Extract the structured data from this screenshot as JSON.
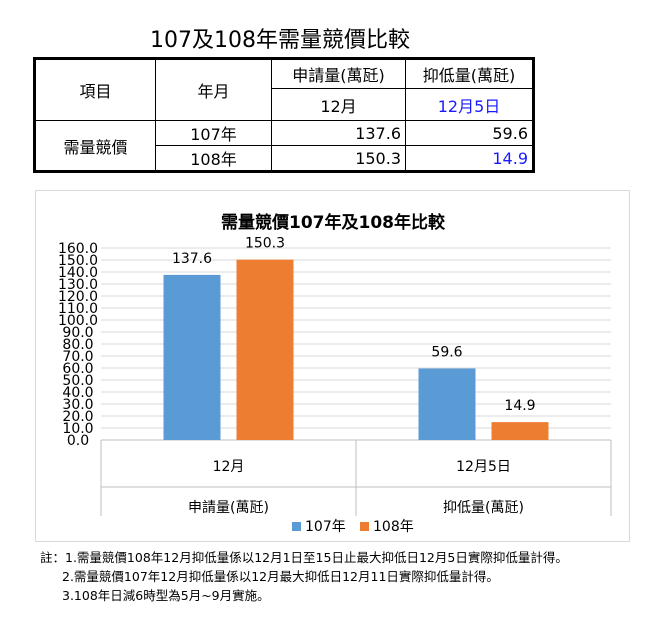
{
  "page_title": "107及108年需量競價比較",
  "table": {
    "h_item": "項目",
    "h_month": "年月",
    "h_apply": "申請量(萬瓩)",
    "h_suppress": "抑低量(萬瓩)",
    "h_apply_month": "12月",
    "h_suppress_date": "12月5日",
    "row_label": "需量競價",
    "rows": [
      {
        "year": "107年",
        "apply": "137.6",
        "suppress": "59.6"
      },
      {
        "year": "108年",
        "apply": "150.3",
        "suppress": "14.9"
      }
    ]
  },
  "chart_data": {
    "type": "bar",
    "title": "需量競價107年及108年比較",
    "categories": [
      "12月",
      "12月5日"
    ],
    "category_groups": [
      "申請量(萬瓩)",
      "抑低量(萬瓩)"
    ],
    "series": [
      {
        "name": "107年",
        "values": [
          137.6,
          59.6
        ],
        "color": "#5b9bd5"
      },
      {
        "name": "108年",
        "values": [
          150.3,
          14.9
        ],
        "color": "#ed7d31"
      }
    ],
    "data_labels": [
      [
        "137.6",
        "150.3"
      ],
      [
        "59.6",
        "14.9"
      ]
    ],
    "yticks": [
      "0.0",
      "10.0",
      "20.0",
      "30.0",
      "40.0",
      "50.0",
      "60.0",
      "70.0",
      "80.0",
      "90.0",
      "100.0",
      "110.0",
      "120.0",
      "130.0",
      "140.0",
      "150.0",
      "160.0"
    ],
    "ylim": [
      0,
      160
    ],
    "grid": true,
    "legend": "bottom"
  },
  "notes": [
    "註：1.需量競價108年12月抑低量係以12月1日至15日止最大抑低日12月5日實際抑低量計得。",
    "2.需量競價107年12月抑低量係以12月最大抑低日12月11日實際抑低量計得。",
    "3.108年日減6時型為5月~9月實施。"
  ]
}
